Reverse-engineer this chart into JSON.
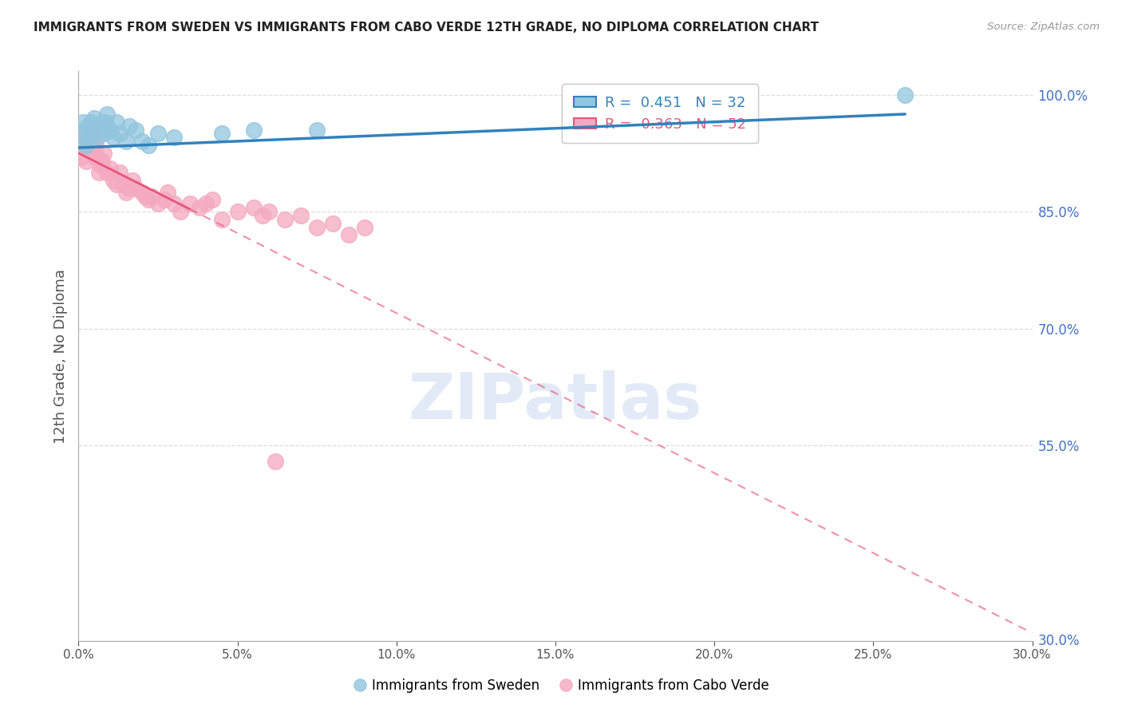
{
  "title": "IMMIGRANTS FROM SWEDEN VS IMMIGRANTS FROM CABO VERDE 12TH GRADE, NO DIPLOMA CORRELATION CHART",
  "source": "Source: ZipAtlas.com",
  "xlabel_vals": [
    0.0,
    5.0,
    10.0,
    15.0,
    20.0,
    25.0,
    30.0
  ],
  "ylabel": "12th Grade, No Diploma",
  "xlim": [
    0.0,
    30.0
  ],
  "ylim": [
    30.0,
    103.0
  ],
  "sweden_R": 0.451,
  "sweden_N": 32,
  "caboverde_R": -0.363,
  "caboverde_N": 52,
  "sweden_color": "#92c5de",
  "caboverde_color": "#f4a9c0",
  "sweden_trend_color": "#3182bd",
  "caboverde_trend_color": "#e8567a",
  "watermark_color": "#cdddf0",
  "legend_label_sweden": "Immigrants from Sweden",
  "legend_label_caboverde": "Immigrants from Cabo Verde",
  "ytick_gridlines": [
    100.0,
    85.0,
    70.0,
    55.0
  ],
  "ytick_right_labels": [
    "100.0%",
    "85.0%",
    "70.0%",
    "55.0%"
  ],
  "ytick_right_values": [
    100.0,
    85.0,
    70.0,
    55.0
  ],
  "ytick_bottom_right": "30.0%",
  "sweden_trend_x0": 0.0,
  "sweden_trend_y0": 93.2,
  "sweden_trend_x1": 26.0,
  "sweden_trend_y1": 97.5,
  "caboverde_trend_x0": 0.0,
  "caboverde_trend_y0": 92.5,
  "caboverde_trend_x1_solid": 3.5,
  "caboverde_trend_x1_dashed": 30.0,
  "caboverde_trend_slope": -2.05,
  "sweden_x": [
    0.1,
    0.15,
    0.2,
    0.25,
    0.3,
    0.35,
    0.4,
    0.45,
    0.5,
    0.55,
    0.6,
    0.65,
    0.7,
    0.75,
    0.8,
    0.85,
    0.9,
    1.0,
    1.1,
    1.2,
    1.3,
    1.5,
    1.6,
    1.8,
    2.0,
    2.2,
    2.5,
    3.0,
    4.5,
    5.5,
    7.5,
    26.0
  ],
  "sweden_y": [
    94.0,
    96.5,
    95.5,
    93.5,
    96.0,
    94.5,
    96.5,
    95.0,
    97.0,
    95.5,
    94.5,
    96.0,
    95.5,
    96.5,
    95.0,
    96.5,
    97.5,
    95.5,
    94.5,
    96.5,
    95.0,
    94.0,
    96.0,
    95.5,
    94.0,
    93.5,
    95.0,
    94.5,
    95.0,
    95.5,
    95.5,
    100.0
  ],
  "caboverde_x": [
    0.1,
    0.15,
    0.2,
    0.25,
    0.25,
    0.3,
    0.3,
    0.35,
    0.4,
    0.45,
    0.5,
    0.55,
    0.6,
    0.65,
    0.7,
    0.75,
    0.8,
    0.9,
    1.0,
    1.1,
    1.2,
    1.3,
    1.4,
    1.5,
    1.6,
    1.7,
    1.8,
    2.0,
    2.1,
    2.2,
    2.3,
    2.5,
    2.7,
    2.8,
    3.0,
    3.2,
    3.5,
    3.8,
    4.0,
    4.2,
    4.5,
    5.0,
    5.5,
    5.8,
    6.0,
    6.5,
    7.0,
    7.5,
    8.0,
    8.5,
    9.0,
    6.2
  ],
  "caboverde_y": [
    92.0,
    94.5,
    93.5,
    91.5,
    95.0,
    93.5,
    94.5,
    93.0,
    95.5,
    94.0,
    92.0,
    93.5,
    92.0,
    90.0,
    91.0,
    91.5,
    92.5,
    90.0,
    90.5,
    89.0,
    88.5,
    90.0,
    88.5,
    87.5,
    88.0,
    89.0,
    88.0,
    87.5,
    87.0,
    86.5,
    87.0,
    86.0,
    86.5,
    87.5,
    86.0,
    85.0,
    86.0,
    85.5,
    86.0,
    86.5,
    84.0,
    85.0,
    85.5,
    84.5,
    85.0,
    84.0,
    84.5,
    83.0,
    83.5,
    82.0,
    83.0,
    53.0
  ]
}
